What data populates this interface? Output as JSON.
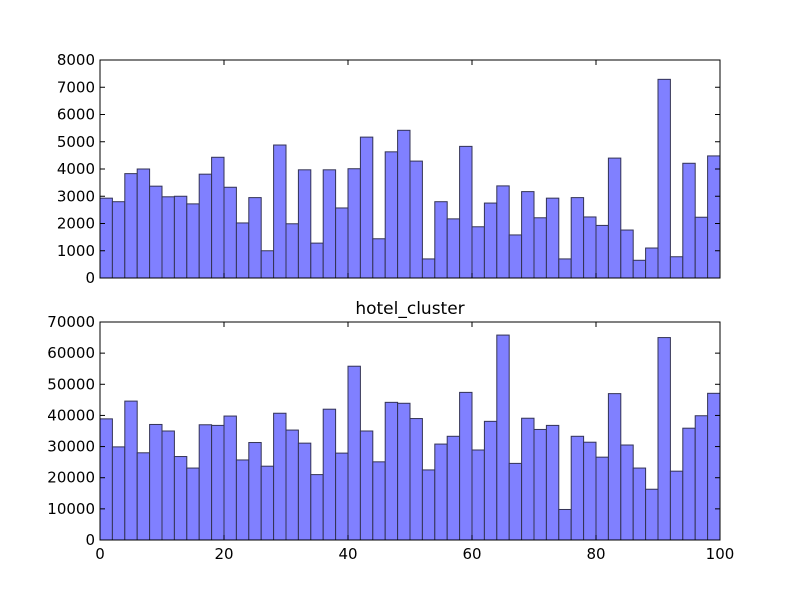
{
  "chart_data": [
    {
      "type": "bar",
      "histogram": true,
      "title": "",
      "xlabel": "",
      "ylabel": "",
      "xlim": [
        0,
        100
      ],
      "ylim": [
        0,
        8000
      ],
      "yticks": [
        0,
        1000,
        2000,
        3000,
        4000,
        5000,
        6000,
        7000,
        8000
      ],
      "xticks": [],
      "bin_edges_start": 0,
      "bin_width": 2,
      "values": [
        2930,
        2800,
        3830,
        4000,
        3370,
        2980,
        3000,
        2720,
        3810,
        4430,
        3330,
        2020,
        2950,
        1000,
        4880,
        1990,
        3970,
        1280,
        3970,
        2570,
        4010,
        5170,
        1440,
        4630,
        5420,
        4290,
        700,
        2800,
        2170,
        4830,
        1880,
        2750,
        3380,
        1580,
        3170,
        2210,
        2930,
        700,
        2950,
        2240,
        1930,
        4400,
        1760,
        650,
        1100,
        7290,
        780,
        4210,
        2230,
        4480
      ],
      "bar_color": "#8080ff",
      "edge_color": "#333355"
    },
    {
      "type": "bar",
      "histogram": true,
      "title": "hotel_cluster",
      "xlabel": "",
      "ylabel": "",
      "xlim": [
        0,
        100
      ],
      "ylim": [
        0,
        70000
      ],
      "yticks": [
        0,
        10000,
        20000,
        30000,
        40000,
        50000,
        60000,
        70000
      ],
      "xticks": [
        0,
        20,
        40,
        60,
        80,
        100
      ],
      "bin_edges_start": 0,
      "bin_width": 2,
      "values": [
        38900,
        29900,
        44600,
        28000,
        37100,
        35000,
        26800,
        23100,
        37000,
        36800,
        39800,
        25700,
        31300,
        23700,
        40700,
        35300,
        31100,
        21000,
        42000,
        27900,
        55800,
        35000,
        25100,
        44200,
        43900,
        39000,
        22500,
        30800,
        33300,
        47400,
        28900,
        38100,
        65800,
        24600,
        39100,
        35500,
        36800,
        9800,
        33300,
        31400,
        26600,
        47000,
        30500,
        23100,
        16300,
        65000,
        22100,
        35900,
        39900,
        47100
      ],
      "bar_color": "#8080ff",
      "edge_color": "#333355"
    }
  ]
}
